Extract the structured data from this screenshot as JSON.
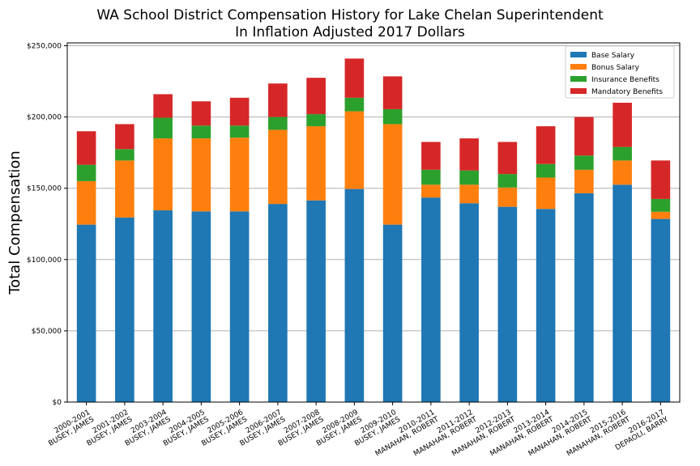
{
  "chart_data": {
    "type": "bar",
    "stacked": true,
    "title": "WA School District Compensation History for Lake Chelan Superintendent",
    "subtitle": "In Inflation Adjusted 2017 Dollars",
    "xlabel": "",
    "ylabel": "Total Compensation",
    "ylim": [
      0,
      252000
    ],
    "yticks": [
      0,
      50000,
      100000,
      150000,
      200000,
      250000
    ],
    "ytick_labels": [
      "$0",
      "$50,000",
      "$100,000",
      "$150,000",
      "$200,000",
      "$250,000"
    ],
    "grid": "horizontal",
    "legend_position": "top-right",
    "categories": [
      [
        "2000-2001",
        "BUSEY, JAMES"
      ],
      [
        "2001-2002",
        "BUSEY, JAMES"
      ],
      [
        "2003-2004",
        "BUSEY, JAMES"
      ],
      [
        "2004-2005",
        "BUSEY, JAMES"
      ],
      [
        "2005-2006",
        "BUSEY, JAMES"
      ],
      [
        "2006-2007",
        "BUSEY, JAMES"
      ],
      [
        "2007-2008",
        "BUSEY, JAMES"
      ],
      [
        "2008-2009",
        "BUSEY, JAMES"
      ],
      [
        "2009-2010",
        "BUSEY, JAMES"
      ],
      [
        "2010-2011",
        "MANAHAN, ROBERT"
      ],
      [
        "2011-2012",
        "MANAHAN, ROBERT"
      ],
      [
        "2012-2013",
        "MANAHAN, ROBERT"
      ],
      [
        "2013-2014",
        "MANAHAN, ROBERT"
      ],
      [
        "2014-2015",
        "MANAHAN, ROBERT"
      ],
      [
        "2015-2016",
        "MANAHAN, ROBERT"
      ],
      [
        "2016-2017",
        "DEPAOLI, BARRY"
      ]
    ],
    "series": [
      {
        "name": "Base Salary",
        "color": "#1f77b4",
        "values": [
          124500,
          129500,
          134500,
          133800,
          133800,
          139000,
          141500,
          149500,
          124500,
          143500,
          139500,
          137000,
          135500,
          146500,
          152500,
          128500
        ]
      },
      {
        "name": "Bonus Salary",
        "color": "#ff7f0e",
        "values": [
          30500,
          40000,
          50500,
          51200,
          51700,
          52000,
          52000,
          54500,
          70500,
          9000,
          13000,
          13500,
          22000,
          16500,
          17000,
          5000
        ]
      },
      {
        "name": "Insurance Benefits",
        "color": "#2ca02c",
        "values": [
          11500,
          8000,
          14500,
          9000,
          8500,
          9000,
          8500,
          9500,
          10500,
          10500,
          10000,
          9500,
          9500,
          10000,
          9500,
          9000
        ]
      },
      {
        "name": "Mandatory Benefits",
        "color": "#d62728",
        "values": [
          23500,
          17500,
          16500,
          17000,
          19500,
          23500,
          25500,
          27500,
          23000,
          19500,
          22500,
          22500,
          26500,
          27000,
          31000,
          27000
        ]
      }
    ]
  }
}
